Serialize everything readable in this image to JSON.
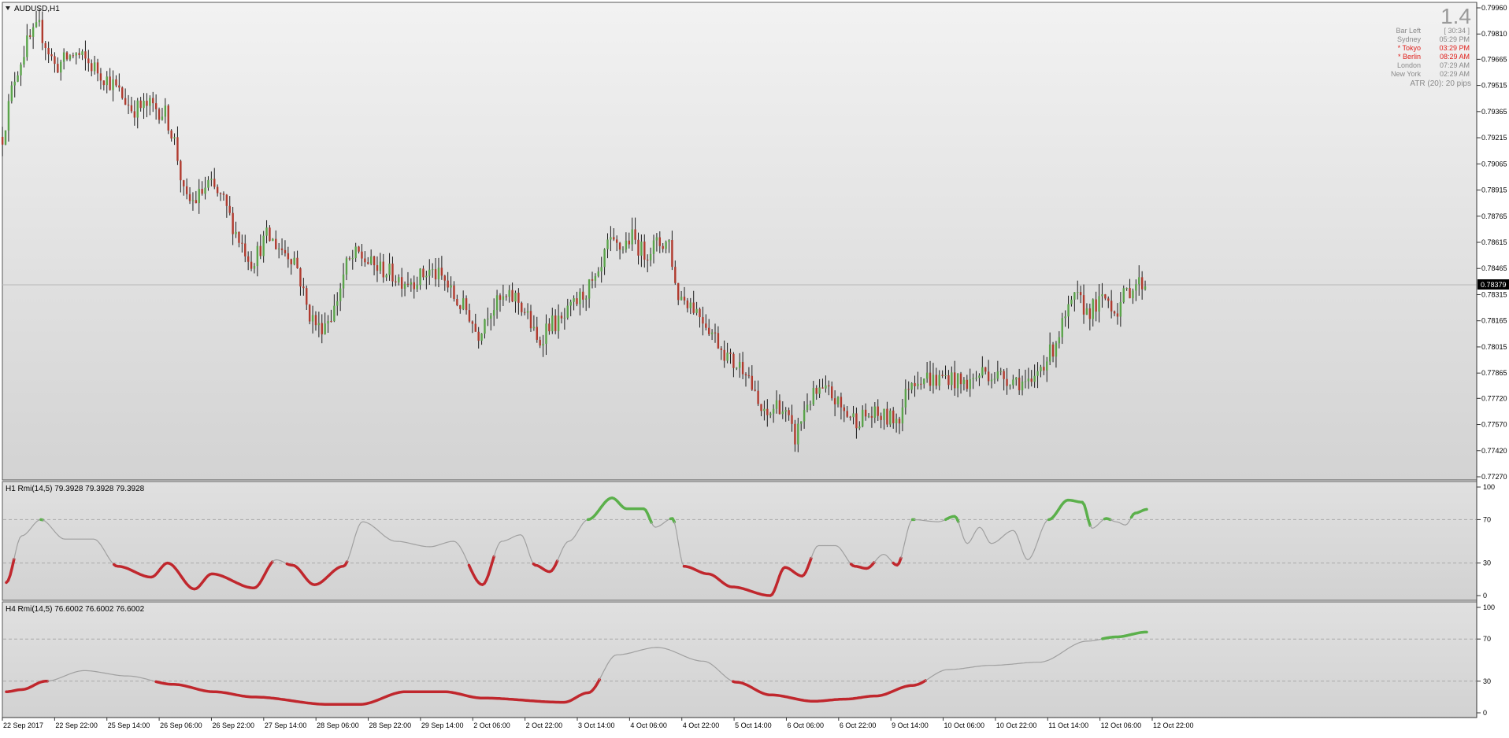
{
  "main": {
    "title": "AUDUSD,H1",
    "symbol_menu_icon": "triangle-down-icon",
    "big_value": "1.4",
    "price_axis": [
      "0.79960",
      "0.79810",
      "0.79665",
      "0.79515",
      "0.79365",
      "0.79215",
      "0.79065",
      "0.78915",
      "0.78765",
      "0.78615",
      "0.78465",
      "0.78315",
      "0.78165",
      "0.78015",
      "0.77865",
      "0.77720",
      "0.77570",
      "0.77420",
      "0.77270"
    ],
    "current_price": "0.78379",
    "info_panel": [
      {
        "label": "Bar Left",
        "value": "[ 30:34 ]",
        "color": "#8a8a8a"
      },
      {
        "label": "Sydney",
        "value": "05:29 PM",
        "color": "#8a8a8a"
      },
      {
        "label": "* Tokyo",
        "value": "03:29 PM",
        "color": "#e0201c"
      },
      {
        "label": "* Berlin",
        "value": "08:29 AM",
        "color": "#e0201c"
      },
      {
        "label": "London",
        "value": "07:29 AM",
        "color": "#8a8a8a"
      },
      {
        "label": "New York",
        "value": "02:29 AM",
        "color": "#8a8a8a"
      }
    ],
    "atr_text": "ATR (20): 20 pips"
  },
  "h1_rmi": {
    "title": "H1 Rmi(14,5) 79.3928 79.3928 79.3928",
    "axis": [
      "100",
      "70",
      "30",
      "0"
    ]
  },
  "h4_rmi": {
    "title": "H4 Rmi(14,5) 76.6002 76.6002 76.6002",
    "axis": [
      "100",
      "70",
      "30",
      "0"
    ]
  },
  "time_axis": [
    "22 Sep 2017",
    "22 Sep 22:00",
    "25 Sep 14:00",
    "26 Sep 06:00",
    "26 Sep 22:00",
    "27 Sep 14:00",
    "28 Sep 06:00",
    "28 Sep 22:00",
    "29 Sep 14:00",
    "2 Oct 06:00",
    "2 Oct 22:00",
    "3 Oct 14:00",
    "4 Oct 06:00",
    "4 Oct 22:00",
    "5 Oct 14:00",
    "6 Oct 06:00",
    "6 Oct 22:00",
    "9 Oct 14:00",
    "10 Oct 06:00",
    "10 Oct 22:00",
    "11 Oct 14:00",
    "12 Oct 06:00",
    "12 Oct 22:00"
  ],
  "colors": {
    "bull_body": "#5aa44a",
    "bear_body": "#b03a2e",
    "neutral_line": "#a0a0a0",
    "overbought_line": "#5bb04b",
    "oversold_line": "#c0272d"
  },
  "chart_data": [
    {
      "type": "candlestick",
      "title": "AUDUSD,H1",
      "ylim": [
        0.7727,
        0.7996
      ],
      "close_path": [
        {
          "x": 0,
          "y": 0.7922
        },
        {
          "x": 12,
          "y": 0.7955
        },
        {
          "x": 25,
          "y": 0.7975
        },
        {
          "x": 38,
          "y": 0.7985
        },
        {
          "x": 55,
          "y": 0.7962
        },
        {
          "x": 75,
          "y": 0.797
        },
        {
          "x": 95,
          "y": 0.7962
        },
        {
          "x": 115,
          "y": 0.7952
        },
        {
          "x": 135,
          "y": 0.7938
        },
        {
          "x": 155,
          "y": 0.794
        },
        {
          "x": 170,
          "y": 0.7935
        },
        {
          "x": 180,
          "y": 0.7918
        },
        {
          "x": 190,
          "y": 0.7885
        },
        {
          "x": 200,
          "y": 0.7885
        },
        {
          "x": 215,
          "y": 0.7895
        },
        {
          "x": 230,
          "y": 0.7885
        },
        {
          "x": 245,
          "y": 0.7865
        },
        {
          "x": 260,
          "y": 0.785
        },
        {
          "x": 275,
          "y": 0.7865
        },
        {
          "x": 290,
          "y": 0.7858
        },
        {
          "x": 305,
          "y": 0.7852
        },
        {
          "x": 318,
          "y": 0.7822
        },
        {
          "x": 330,
          "y": 0.7812
        },
        {
          "x": 345,
          "y": 0.7822
        },
        {
          "x": 358,
          "y": 0.7848
        },
        {
          "x": 370,
          "y": 0.7855
        },
        {
          "x": 385,
          "y": 0.7848
        },
        {
          "x": 400,
          "y": 0.7845
        },
        {
          "x": 415,
          "y": 0.784
        },
        {
          "x": 430,
          "y": 0.784
        },
        {
          "x": 445,
          "y": 0.7845
        },
        {
          "x": 460,
          "y": 0.784
        },
        {
          "x": 472,
          "y": 0.7828
        },
        {
          "x": 485,
          "y": 0.7822
        },
        {
          "x": 495,
          "y": 0.7808
        },
        {
          "x": 505,
          "y": 0.7822
        },
        {
          "x": 520,
          "y": 0.7828
        },
        {
          "x": 535,
          "y": 0.783
        },
        {
          "x": 548,
          "y": 0.7818
        },
        {
          "x": 558,
          "y": 0.7802
        },
        {
          "x": 568,
          "y": 0.7815
        },
        {
          "x": 582,
          "y": 0.7815
        },
        {
          "x": 595,
          "y": 0.7825
        },
        {
          "x": 610,
          "y": 0.7835
        },
        {
          "x": 622,
          "y": 0.784
        },
        {
          "x": 630,
          "y": 0.786
        },
        {
          "x": 645,
          "y": 0.7858
        },
        {
          "x": 655,
          "y": 0.7865
        },
        {
          "x": 668,
          "y": 0.7855
        },
        {
          "x": 680,
          "y": 0.786
        },
        {
          "x": 695,
          "y": 0.7862
        },
        {
          "x": 702,
          "y": 0.7832
        },
        {
          "x": 715,
          "y": 0.7828
        },
        {
          "x": 730,
          "y": 0.7818
        },
        {
          "x": 745,
          "y": 0.7805
        },
        {
          "x": 760,
          "y": 0.7792
        },
        {
          "x": 775,
          "y": 0.779
        },
        {
          "x": 785,
          "y": 0.777
        },
        {
          "x": 795,
          "y": 0.776
        },
        {
          "x": 808,
          "y": 0.777
        },
        {
          "x": 818,
          "y": 0.776
        },
        {
          "x": 825,
          "y": 0.7748
        },
        {
          "x": 838,
          "y": 0.777
        },
        {
          "x": 850,
          "y": 0.7775
        },
        {
          "x": 862,
          "y": 0.7775
        },
        {
          "x": 875,
          "y": 0.7765
        },
        {
          "x": 888,
          "y": 0.776
        },
        {
          "x": 900,
          "y": 0.7762
        },
        {
          "x": 912,
          "y": 0.7762
        },
        {
          "x": 925,
          "y": 0.776
        },
        {
          "x": 935,
          "y": 0.7762
        },
        {
          "x": 945,
          "y": 0.7782
        },
        {
          "x": 958,
          "y": 0.7785
        },
        {
          "x": 972,
          "y": 0.7782
        },
        {
          "x": 985,
          "y": 0.7785
        },
        {
          "x": 998,
          "y": 0.778
        },
        {
          "x": 1010,
          "y": 0.7782
        },
        {
          "x": 1022,
          "y": 0.7788
        },
        {
          "x": 1035,
          "y": 0.7785
        },
        {
          "x": 1048,
          "y": 0.7784
        },
        {
          "x": 1060,
          "y": 0.7782
        },
        {
          "x": 1072,
          "y": 0.7778
        },
        {
          "x": 1080,
          "y": 0.779
        },
        {
          "x": 1092,
          "y": 0.7798
        },
        {
          "x": 1105,
          "y": 0.7815
        },
        {
          "x": 1118,
          "y": 0.783
        },
        {
          "x": 1130,
          "y": 0.7822
        },
        {
          "x": 1140,
          "y": 0.7825
        },
        {
          "x": 1150,
          "y": 0.783
        },
        {
          "x": 1160,
          "y": 0.7822
        },
        {
          "x": 1170,
          "y": 0.7832
        },
        {
          "x": 1180,
          "y": 0.7838
        },
        {
          "x": 1192,
          "y": 0.7838
        }
      ]
    },
    {
      "type": "line",
      "title": "H1 Rmi(14,5) 79.3928 79.3928 79.3928",
      "ylim": [
        0,
        100
      ],
      "overbought_level": 70,
      "oversold_level": 30,
      "values": [
        {
          "x": 4,
          "y": 12
        },
        {
          "x": 20,
          "y": 55
        },
        {
          "x": 40,
          "y": 70
        },
        {
          "x": 65,
          "y": 52
        },
        {
          "x": 95,
          "y": 52
        },
        {
          "x": 120,
          "y": 27
        },
        {
          "x": 155,
          "y": 17
        },
        {
          "x": 172,
          "y": 30
        },
        {
          "x": 200,
          "y": 6
        },
        {
          "x": 218,
          "y": 20
        },
        {
          "x": 262,
          "y": 7
        },
        {
          "x": 285,
          "y": 33
        },
        {
          "x": 302,
          "y": 28
        },
        {
          "x": 325,
          "y": 10
        },
        {
          "x": 355,
          "y": 27
        },
        {
          "x": 375,
          "y": 68
        },
        {
          "x": 410,
          "y": 50
        },
        {
          "x": 445,
          "y": 45
        },
        {
          "x": 470,
          "y": 50
        },
        {
          "x": 500,
          "y": 10
        },
        {
          "x": 520,
          "y": 50
        },
        {
          "x": 540,
          "y": 56
        },
        {
          "x": 555,
          "y": 28
        },
        {
          "x": 570,
          "y": 22
        },
        {
          "x": 590,
          "y": 50
        },
        {
          "x": 610,
          "y": 70
        },
        {
          "x": 635,
          "y": 90
        },
        {
          "x": 650,
          "y": 80
        },
        {
          "x": 668,
          "y": 80
        },
        {
          "x": 680,
          "y": 63
        },
        {
          "x": 698,
          "y": 71
        },
        {
          "x": 710,
          "y": 27
        },
        {
          "x": 735,
          "y": 20
        },
        {
          "x": 760,
          "y": 8
        },
        {
          "x": 800,
          "y": 0
        },
        {
          "x": 815,
          "y": 26
        },
        {
          "x": 833,
          "y": 18
        },
        {
          "x": 850,
          "y": 46
        },
        {
          "x": 868,
          "y": 46
        },
        {
          "x": 888,
          "y": 27
        },
        {
          "x": 900,
          "y": 25
        },
        {
          "x": 918,
          "y": 38
        },
        {
          "x": 932,
          "y": 28
        },
        {
          "x": 948,
          "y": 70
        },
        {
          "x": 975,
          "y": 68
        },
        {
          "x": 992,
          "y": 73
        },
        {
          "x": 1005,
          "y": 48
        },
        {
          "x": 1018,
          "y": 63
        },
        {
          "x": 1030,
          "y": 48
        },
        {
          "x": 1053,
          "y": 60
        },
        {
          "x": 1068,
          "y": 33
        },
        {
          "x": 1090,
          "y": 70
        },
        {
          "x": 1110,
          "y": 88
        },
        {
          "x": 1125,
          "y": 86
        },
        {
          "x": 1135,
          "y": 62
        },
        {
          "x": 1150,
          "y": 71
        },
        {
          "x": 1160,
          "y": 68
        },
        {
          "x": 1170,
          "y": 65
        },
        {
          "x": 1180,
          "y": 76
        },
        {
          "x": 1192,
          "y": 79.39
        }
      ]
    },
    {
      "type": "line",
      "title": "H4 Rmi(14,5) 76.6002 76.6002 76.6002",
      "ylim": [
        0,
        100
      ],
      "overbought_level": 70,
      "oversold_level": 30,
      "values": [
        {
          "x": 4,
          "y": 20
        },
        {
          "x": 20,
          "y": 22
        },
        {
          "x": 45,
          "y": 30
        },
        {
          "x": 85,
          "y": 40
        },
        {
          "x": 130,
          "y": 35
        },
        {
          "x": 178,
          "y": 27
        },
        {
          "x": 220,
          "y": 20
        },
        {
          "x": 262,
          "y": 15
        },
        {
          "x": 340,
          "y": 8
        },
        {
          "x": 372,
          "y": 8
        },
        {
          "x": 420,
          "y": 20
        },
        {
          "x": 460,
          "y": 20
        },
        {
          "x": 500,
          "y": 14
        },
        {
          "x": 585,
          "y": 10
        },
        {
          "x": 610,
          "y": 19
        },
        {
          "x": 640,
          "y": 55
        },
        {
          "x": 682,
          "y": 62
        },
        {
          "x": 730,
          "y": 49
        },
        {
          "x": 765,
          "y": 29
        },
        {
          "x": 800,
          "y": 17
        },
        {
          "x": 845,
          "y": 11
        },
        {
          "x": 878,
          "y": 13
        },
        {
          "x": 910,
          "y": 16
        },
        {
          "x": 948,
          "y": 26
        },
        {
          "x": 985,
          "y": 41
        },
        {
          "x": 1030,
          "y": 45
        },
        {
          "x": 1080,
          "y": 48
        },
        {
          "x": 1130,
          "y": 68
        },
        {
          "x": 1160,
          "y": 72
        },
        {
          "x": 1192,
          "y": 76.6
        }
      ]
    }
  ]
}
